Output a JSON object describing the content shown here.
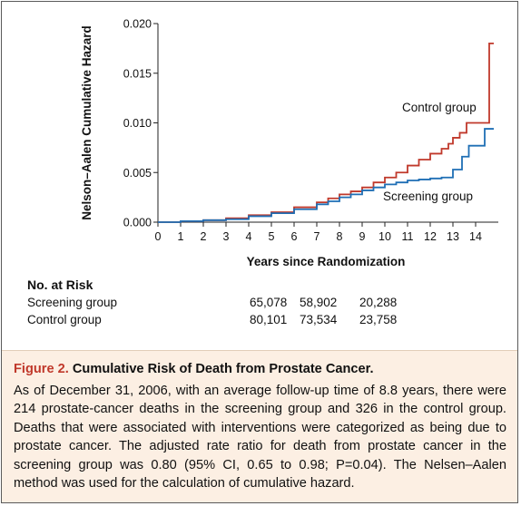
{
  "chart_data": {
    "type": "line",
    "title": "",
    "xlabel": "Years since Randomization",
    "ylabel": "Nelson–Aalen Cumulative Hazard",
    "xlim": [
      0,
      15
    ],
    "ylim": [
      0,
      0.02
    ],
    "x_ticks": [
      "0",
      "1",
      "2",
      "3",
      "4",
      "5",
      "6",
      "7",
      "8",
      "9",
      "10",
      "11",
      "12",
      "13",
      "14"
    ],
    "y_ticks": [
      "0.000",
      "0.005",
      "0.010",
      "0.015",
      "0.020"
    ],
    "grid": false,
    "legend": "inline labels",
    "series": [
      {
        "name": "Control group",
        "color": "#c0392b",
        "step": true,
        "x": [
          0,
          1,
          2,
          3,
          4,
          5,
          6,
          7,
          7.5,
          8,
          8.5,
          9,
          9.5,
          10,
          10.5,
          11,
          11.5,
          12,
          12.5,
          12.8,
          13,
          13.3,
          13.6,
          14,
          14.6,
          14.8
        ],
        "y": [
          0,
          0.0001,
          0.0002,
          0.0004,
          0.0007,
          0.001,
          0.0015,
          0.002,
          0.0024,
          0.0028,
          0.0031,
          0.0035,
          0.004,
          0.0045,
          0.005,
          0.0057,
          0.0063,
          0.0069,
          0.0074,
          0.0079,
          0.0085,
          0.009,
          0.01,
          0.01,
          0.018,
          0.018
        ]
      },
      {
        "name": "Screening group",
        "color": "#1f6fb5",
        "step": true,
        "x": [
          0,
          1,
          2,
          3,
          4,
          5,
          6,
          7,
          7.5,
          8,
          8.5,
          9,
          9.5,
          10,
          10.5,
          11,
          11.5,
          12,
          12.5,
          12.8,
          13,
          13.4,
          13.7,
          14,
          14.4,
          14.8
        ],
        "y": [
          0,
          0.0001,
          0.0002,
          0.0003,
          0.0006,
          0.0009,
          0.0013,
          0.0018,
          0.0021,
          0.0025,
          0.0028,
          0.0032,
          0.0035,
          0.0038,
          0.004,
          0.0042,
          0.0043,
          0.0044,
          0.0045,
          0.0045,
          0.0053,
          0.0066,
          0.0077,
          0.0077,
          0.0094,
          0.0094
        ]
      }
    ]
  },
  "no_at_risk": {
    "title": "No. at Risk",
    "rows": [
      {
        "label": "Screening group",
        "values": [
          "65,078",
          "58,902",
          "20,288"
        ]
      },
      {
        "label": "Control group",
        "values": [
          "80,101",
          "73,534",
          "23,758"
        ]
      }
    ]
  },
  "caption": {
    "figure_number": "Figure 2.",
    "title": "Cumulative Risk of Death from Prostate Cancer.",
    "body": "As of December 31, 2006, with an average follow-up time of 8.8 years, there were 214 prostate-cancer deaths in the screening group and 326 in the control group. Deaths that were associated with interventions were categorized as being due to prostate cancer. The adjusted rate ratio for death from prostate cancer in the screening group was 0.80 (95% CI, 0.65 to 0.98; P=0.04). The Nelsen–Aalen method was used for the calculation of cumulative hazard."
  }
}
